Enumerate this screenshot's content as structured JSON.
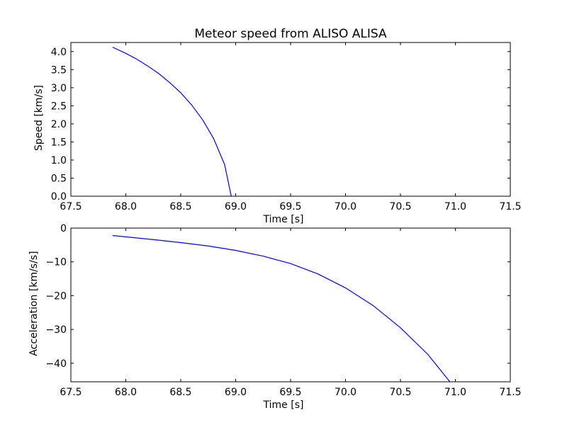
{
  "figure": {
    "title": "Meteor speed from  ALISO ALISA",
    "background": "#ffffff",
    "line_color": "#0000ff"
  },
  "chart_data": [
    {
      "type": "line",
      "xlabel": "Time [s]",
      "ylabel": "Speed [km/s]",
      "xlim": [
        67.5,
        71.5
      ],
      "ylim": [
        0.0,
        4.25
      ],
      "xticks": [
        67.5,
        68.0,
        68.5,
        69.0,
        69.5,
        70.0,
        70.5,
        71.0,
        71.5
      ],
      "xtick_labels": [
        "67.5",
        "68.0",
        "68.5",
        "69.0",
        "69.5",
        "70.0",
        "70.5",
        "71.0",
        "71.5"
      ],
      "yticks": [
        0.0,
        0.5,
        1.0,
        1.5,
        2.0,
        2.5,
        3.0,
        3.5,
        4.0
      ],
      "ytick_labels": [
        "0.0",
        "0.5",
        "1.0",
        "1.5",
        "2.0",
        "2.5",
        "3.0",
        "3.5",
        "4.0"
      ],
      "grid": false,
      "series": [
        {
          "color": "#0000ff",
          "x": [
            67.88,
            68.0,
            68.1,
            68.2,
            68.3,
            68.4,
            68.5,
            68.6,
            68.7,
            68.8,
            68.9,
            68.96
          ],
          "y": [
            4.12,
            3.95,
            3.79,
            3.6,
            3.39,
            3.14,
            2.86,
            2.52,
            2.11,
            1.59,
            0.87,
            0.0
          ]
        }
      ]
    },
    {
      "type": "line",
      "xlabel": "Time [s]",
      "ylabel": "Acceleration [km/s/s]",
      "xlim": [
        67.5,
        71.5
      ],
      "ylim": [
        -45.5,
        0
      ],
      "xticks": [
        67.5,
        68.0,
        68.5,
        69.0,
        69.5,
        70.0,
        70.5,
        71.0,
        71.5
      ],
      "xtick_labels": [
        "67.5",
        "68.0",
        "68.5",
        "69.0",
        "69.5",
        "70.0",
        "70.5",
        "71.0",
        "71.5"
      ],
      "yticks": [
        0,
        -10,
        -20,
        -30,
        -40
      ],
      "ytick_labels": [
        "0",
        "−10",
        "−20",
        "−30",
        "−40"
      ],
      "grid": false,
      "series": [
        {
          "color": "#0000ff",
          "x": [
            67.88,
            68.0,
            68.25,
            68.5,
            68.75,
            69.0,
            69.25,
            69.5,
            69.75,
            70.0,
            70.25,
            70.5,
            70.75,
            70.95
          ],
          "y": [
            -2.2,
            -2.6,
            -3.4,
            -4.3,
            -5.3,
            -6.6,
            -8.3,
            -10.5,
            -13.6,
            -17.7,
            -22.9,
            -29.5,
            -37.4,
            -45.5
          ]
        }
      ]
    }
  ]
}
